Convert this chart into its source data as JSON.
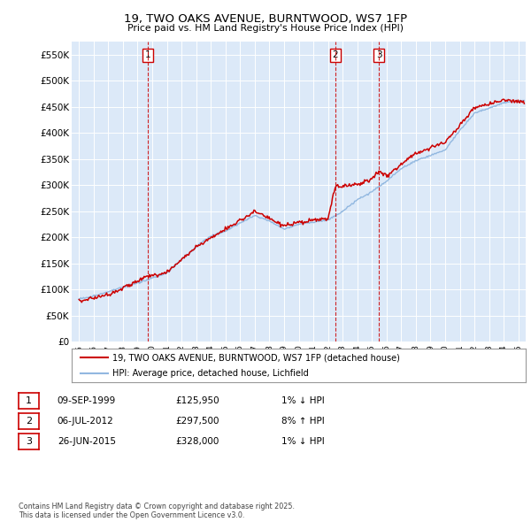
{
  "title": "19, TWO OAKS AVENUE, BURNTWOOD, WS7 1FP",
  "subtitle": "Price paid vs. HM Land Registry's House Price Index (HPI)",
  "background_color": "#ffffff",
  "plot_bg_color": "#dce9f8",
  "ylim": [
    0,
    575000
  ],
  "yticks": [
    0,
    50000,
    100000,
    150000,
    200000,
    250000,
    300000,
    350000,
    400000,
    450000,
    500000,
    550000
  ],
  "ytick_labels": [
    "£0",
    "£50K",
    "£100K",
    "£150K",
    "£200K",
    "£250K",
    "£300K",
    "£350K",
    "£400K",
    "£450K",
    "£500K",
    "£550K"
  ],
  "hpi_color": "#92b8e0",
  "price_color": "#cc0000",
  "vline_color": "#cc0000",
  "legend_label_price": "19, TWO OAKS AVENUE, BURNTWOOD, WS7 1FP (detached house)",
  "legend_label_hpi": "HPI: Average price, detached house, Lichfield",
  "transactions": [
    {
      "label": "1",
      "date_num": 1999.69,
      "price": 125950,
      "note": "09-SEP-1999",
      "pct": "1%",
      "dir": "↓"
    },
    {
      "label": "2",
      "date_num": 2012.51,
      "price": 297500,
      "note": "06-JUL-2012",
      "pct": "8%",
      "dir": "↑"
    },
    {
      "label": "3",
      "date_num": 2015.48,
      "price": 328000,
      "note": "26-JUN-2015",
      "pct": "1%",
      "dir": "↓"
    }
  ],
  "table_rows": [
    [
      "1",
      "09-SEP-1999",
      "£125,950",
      "1% ↓ HPI"
    ],
    [
      "2",
      "06-JUL-2012",
      "£297,500",
      "8% ↑ HPI"
    ],
    [
      "3",
      "26-JUN-2015",
      "£328,000",
      "1% ↓ HPI"
    ]
  ],
  "footnote": "Contains HM Land Registry data © Crown copyright and database right 2025.\nThis data is licensed under the Open Government Licence v3.0.",
  "xmin": 1994.5,
  "xmax": 2025.5,
  "hpi_keypoints_x": [
    1995,
    1996,
    1997,
    1998,
    1999,
    2000,
    2001,
    2002,
    2003,
    2004,
    2005,
    2006,
    2007,
    2008,
    2009,
    2010,
    2011,
    2012,
    2013,
    2014,
    2015,
    2016,
    2017,
    2018,
    2019,
    2020,
    2021,
    2022,
    2023,
    2024,
    2025
  ],
  "hpi_keypoints_y": [
    82000,
    88000,
    96000,
    105000,
    113000,
    122000,
    132000,
    158000,
    182000,
    203000,
    212000,
    228000,
    242000,
    232000,
    216000,
    226000,
    229000,
    234000,
    250000,
    272000,
    288000,
    308000,
    332000,
    347000,
    357000,
    368000,
    405000,
    438000,
    448000,
    458000,
    462000
  ],
  "price_keypoints_x": [
    1995,
    1997,
    1999.0,
    1999.69,
    2001,
    2003,
    2005,
    2007,
    2009,
    2011,
    2012.0,
    2012.51,
    2014,
    2015.0,
    2015.48,
    2016,
    2018,
    2020,
    2022,
    2024,
    2025
  ],
  "price_keypoints_y": [
    78000,
    91000,
    116000,
    125950,
    133000,
    182000,
    216000,
    250000,
    222000,
    233000,
    236000,
    297500,
    302000,
    312000,
    328000,
    318000,
    362000,
    382000,
    448000,
    464000,
    460000
  ]
}
